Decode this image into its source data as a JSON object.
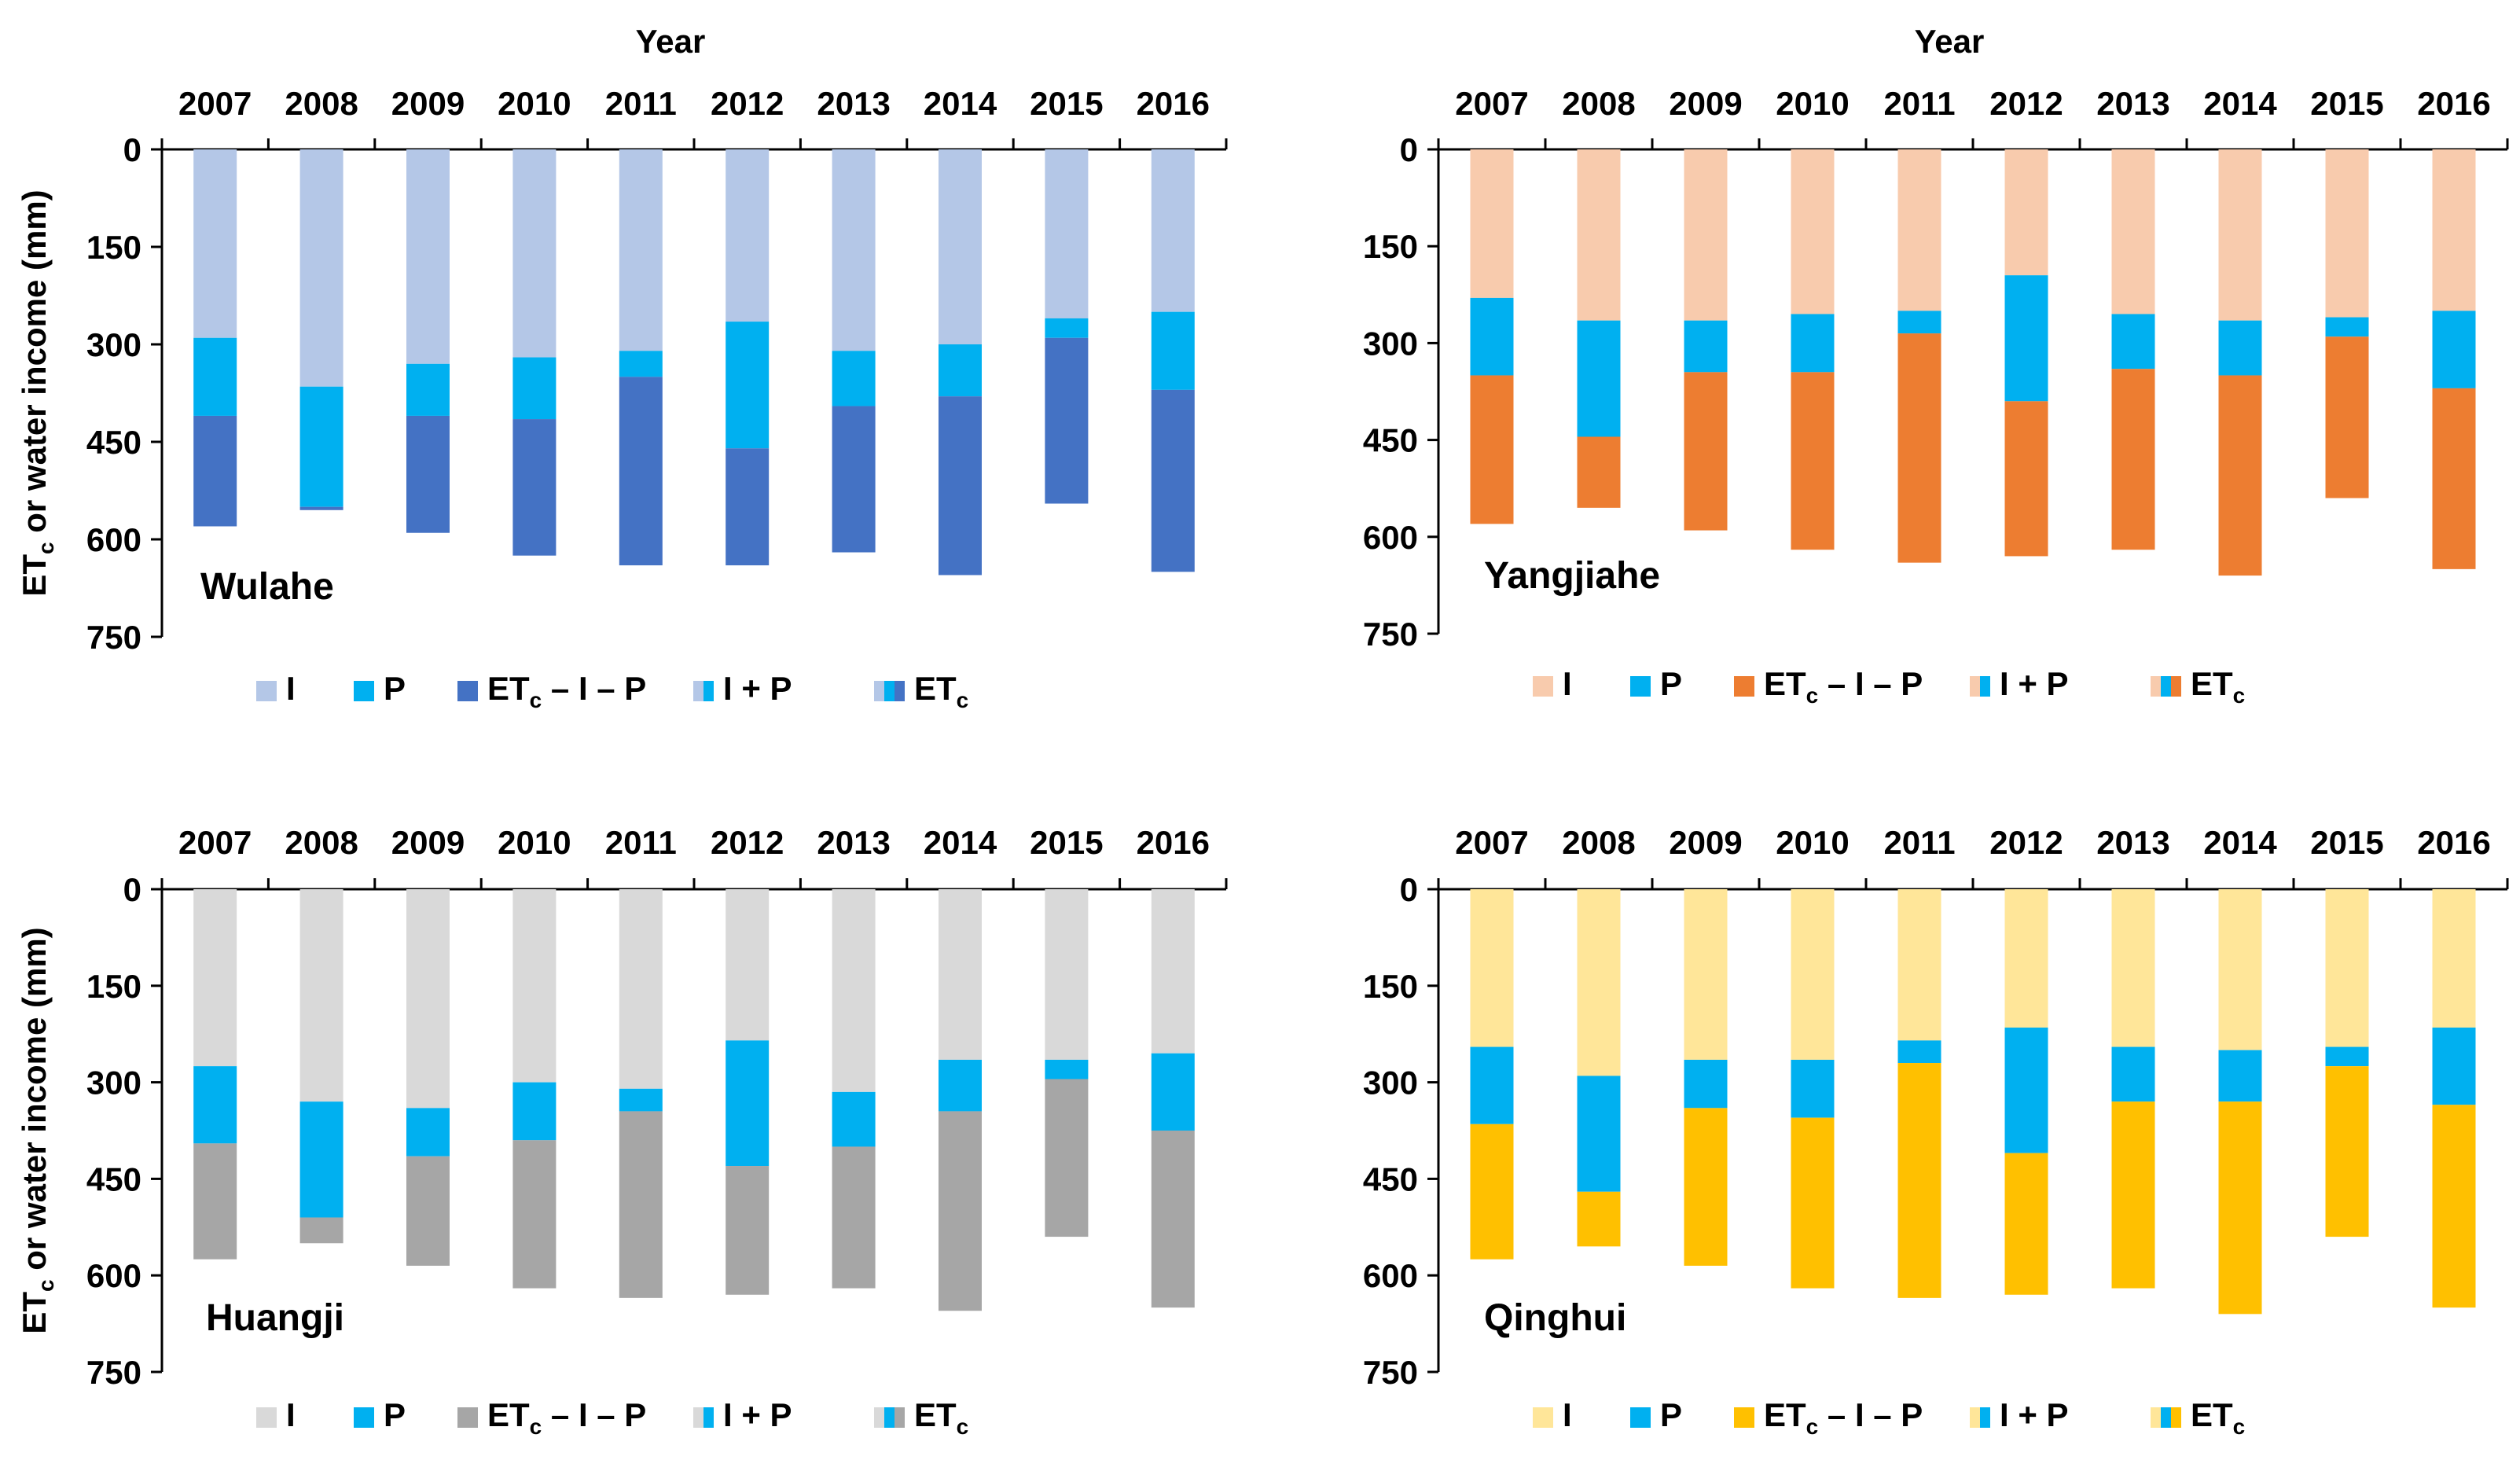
{
  "chart_data": [
    {
      "type": "bar",
      "site": "Wulahe",
      "title": "Year",
      "ylabel": "ET",
      "ylabel_sub": "c",
      "ylabel_rest": " or water income (mm)",
      "categories": [
        "2007",
        "2008",
        "2009",
        "2010",
        "2011",
        "2012",
        "2013",
        "2014",
        "2015",
        "2016"
      ],
      "ylim": [
        0,
        750
      ],
      "yticks": [
        "0",
        "150",
        "300",
        "450",
        "600",
        "750"
      ],
      "yaxis_inverted": true,
      "colors": {
        "I": "#b4c7e7",
        "P": "#00b0f0",
        "residual": "#4472c4"
      },
      "series": [
        {
          "name": "I",
          "values": [
            290,
            365,
            330,
            320,
            310,
            265,
            310,
            300,
            260,
            250
          ]
        },
        {
          "name": "P",
          "values": [
            120,
            185,
            80,
            95,
            40,
            195,
            85,
            80,
            30,
            120
          ]
        },
        {
          "name": "ETc − I − P",
          "values": [
            170,
            5,
            180,
            210,
            290,
            180,
            225,
            275,
            255,
            280
          ]
        }
      ],
      "legend": {
        "i": "I",
        "p": "P",
        "resid_pre": "ET",
        "resid_sub": "c",
        "resid_post": " – I – P",
        "ip": "I + P",
        "etc": "ET",
        "etc_sub": "c"
      }
    },
    {
      "type": "bar",
      "site": "Yangjiahe",
      "title": "Year",
      "categories": [
        "2007",
        "2008",
        "2009",
        "2010",
        "2011",
        "2012",
        "2013",
        "2014",
        "2015",
        "2016"
      ],
      "ylim": [
        0,
        750
      ],
      "yticks": [
        "0",
        "150",
        "300",
        "450",
        "600",
        "750"
      ],
      "yaxis_inverted": true,
      "colors": {
        "I": "#f8cbad",
        "P": "#00b0f0",
        "residual": "#ed7d31"
      },
      "series": [
        {
          "name": "I",
          "values": [
            230,
            265,
            265,
            255,
            250,
            195,
            255,
            265,
            260,
            250
          ]
        },
        {
          "name": "P",
          "values": [
            120,
            180,
            80,
            90,
            35,
            195,
            85,
            85,
            30,
            120
          ]
        },
        {
          "name": "ETc − I − P",
          "values": [
            230,
            110,
            245,
            275,
            355,
            240,
            280,
            310,
            250,
            280
          ]
        }
      ],
      "legend": {
        "i": "I",
        "p": "P",
        "resid_pre": "ET",
        "resid_sub": "c",
        "resid_post": " – I – P",
        "ip": "I + P",
        "etc": "ET",
        "etc_sub": "c"
      }
    },
    {
      "type": "bar",
      "site": "Huangji",
      "ylabel": "ET",
      "ylabel_sub": "c",
      "ylabel_rest": " or water income (mm)",
      "categories": [
        "2007",
        "2008",
        "2009",
        "2010",
        "2011",
        "2012",
        "2013",
        "2014",
        "2015",
        "2016"
      ],
      "ylim": [
        0,
        750
      ],
      "yticks": [
        "0",
        "150",
        "300",
        "450",
        "600",
        "750"
      ],
      "yaxis_inverted": true,
      "colors": {
        "I": "#d9d9d9",
        "P": "#00b0f0",
        "residual": "#a6a6a6"
      },
      "series": [
        {
          "name": "I",
          "values": [
            275,
            330,
            340,
            300,
            310,
            235,
            315,
            265,
            265,
            255
          ]
        },
        {
          "name": "P",
          "values": [
            120,
            180,
            75,
            90,
            35,
            195,
            85,
            80,
            30,
            120
          ]
        },
        {
          "name": "ETc − I − P",
          "values": [
            180,
            40,
            170,
            230,
            290,
            200,
            220,
            310,
            245,
            275
          ]
        }
      ],
      "legend": {
        "i": "I",
        "p": "P",
        "resid_pre": "ET",
        "resid_sub": "c",
        "resid_post": " – I – P",
        "ip": "I + P",
        "etc": "ET",
        "etc_sub": "c"
      }
    },
    {
      "type": "bar",
      "site": "Qinghui",
      "categories": [
        "2007",
        "2008",
        "2009",
        "2010",
        "2011",
        "2012",
        "2013",
        "2014",
        "2015",
        "2016"
      ],
      "ylim": [
        0,
        750
      ],
      "yticks": [
        "0",
        "150",
        "300",
        "450",
        "600",
        "750"
      ],
      "yaxis_inverted": true,
      "colors": {
        "I": "#ffe699",
        "P": "#00b0f0",
        "residual": "#ffc000"
      },
      "series": [
        {
          "name": "I",
          "values": [
            245,
            290,
            265,
            265,
            235,
            215,
            245,
            250,
            245,
            215
          ]
        },
        {
          "name": "P",
          "values": [
            120,
            180,
            75,
            90,
            35,
            195,
            85,
            80,
            30,
            120
          ]
        },
        {
          "name": "ETc − I − P",
          "values": [
            210,
            85,
            245,
            265,
            365,
            220,
            290,
            330,
            265,
            315
          ]
        }
      ],
      "legend": {
        "i": "I",
        "p": "P",
        "resid_pre": "ET",
        "resid_sub": "c",
        "resid_post": " – I – P",
        "ip": "I + P",
        "etc": "ET",
        "etc_sub": "c"
      }
    }
  ]
}
